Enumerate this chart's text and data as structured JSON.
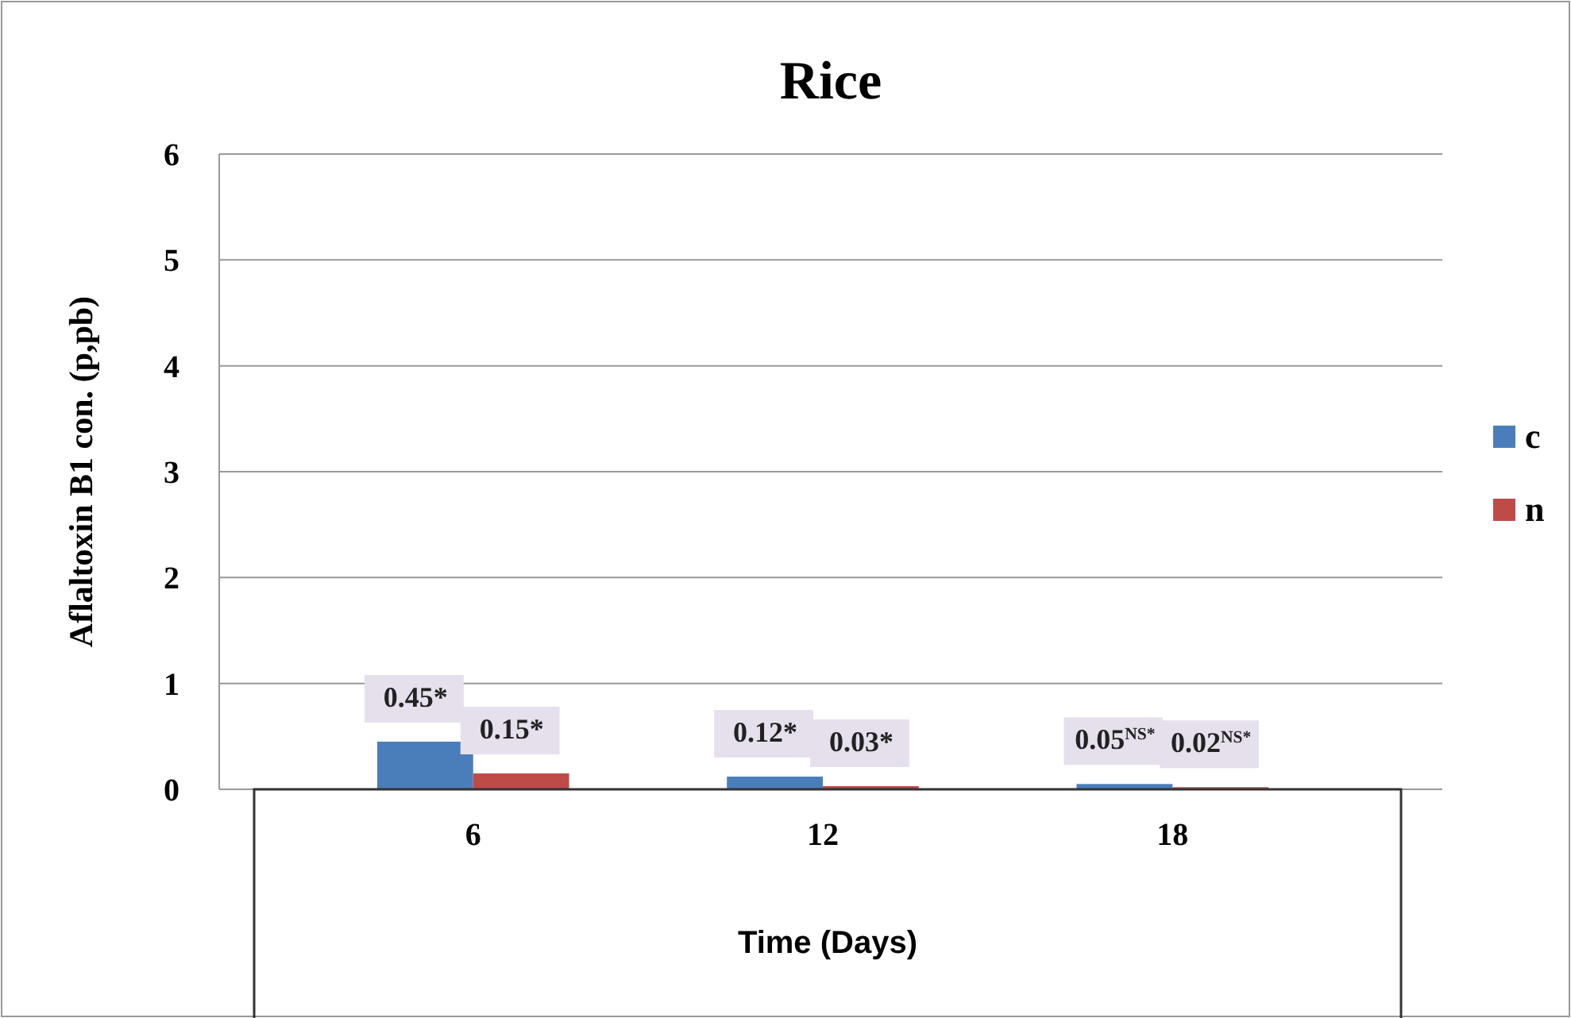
{
  "chart_data": {
    "type": "bar",
    "title": "Rice",
    "xlabel": "Time (Days)",
    "ylabel": "Aflaltoxin B1 con. (p,pb)",
    "categories": [
      "6",
      "12",
      "18"
    ],
    "series": [
      {
        "name": "c",
        "color": "#4a7ebb",
        "values": [
          0.45,
          0.12,
          0.05
        ],
        "value_labels": [
          "0.45*",
          "0.12*",
          "0.05$^{NS*}$"
        ]
      },
      {
        "name": "n",
        "color": "#be4b48",
        "values": [
          0.15,
          0.03,
          0.02
        ],
        "value_labels": [
          "0.15*",
          "0.03*",
          "0.02$^{NS*}$"
        ]
      }
    ],
    "ylim": [
      0,
      6
    ],
    "yticks": [
      0,
      1,
      2,
      3,
      4,
      5,
      6
    ],
    "grid": "y",
    "legend": "right"
  }
}
